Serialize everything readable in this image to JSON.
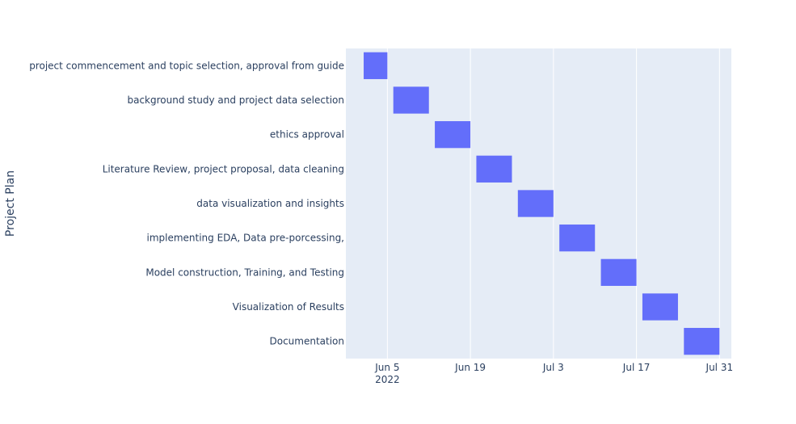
{
  "chart_data": {
    "type": "gantt",
    "title": "",
    "xlabel": "",
    "ylabel": "Project Plan",
    "x_range": [
      "2022-05-29",
      "2022-08-02"
    ],
    "x_ticks": [
      {
        "date": "2022-06-05",
        "label": "Jun 5",
        "sublabel": "2022"
      },
      {
        "date": "2022-06-19",
        "label": "Jun 19",
        "sublabel": ""
      },
      {
        "date": "2022-07-03",
        "label": "Jul 3",
        "sublabel": ""
      },
      {
        "date": "2022-07-17",
        "label": "Jul 17",
        "sublabel": ""
      },
      {
        "date": "2022-07-31",
        "label": "Jul 31",
        "sublabel": ""
      }
    ],
    "grid": true,
    "bar_color": "#636efa",
    "plot_bg": "#e5ecf6",
    "tasks": [
      {
        "name": "project commencement and topic selection, approval from guide",
        "start": "2022-06-01",
        "end": "2022-06-05"
      },
      {
        "name": "background study and project data selection",
        "start": "2022-06-06",
        "end": "2022-06-12"
      },
      {
        "name": "ethics approval",
        "start": "2022-06-13",
        "end": "2022-06-19"
      },
      {
        "name": "Literature Review, project proposal, data cleaning",
        "start": "2022-06-20",
        "end": "2022-06-26"
      },
      {
        "name": "data visualization and insights",
        "start": "2022-06-27",
        "end": "2022-07-03"
      },
      {
        "name": "implementing EDA, Data pre-porcessing,",
        "start": "2022-07-04",
        "end": "2022-07-10"
      },
      {
        "name": "Model construction, Training, and Testing",
        "start": "2022-07-11",
        "end": "2022-07-17"
      },
      {
        "name": "Visualization of Results",
        "start": "2022-07-18",
        "end": "2022-07-24"
      },
      {
        "name": "Documentation",
        "start": "2022-07-25",
        "end": "2022-07-31"
      }
    ]
  }
}
